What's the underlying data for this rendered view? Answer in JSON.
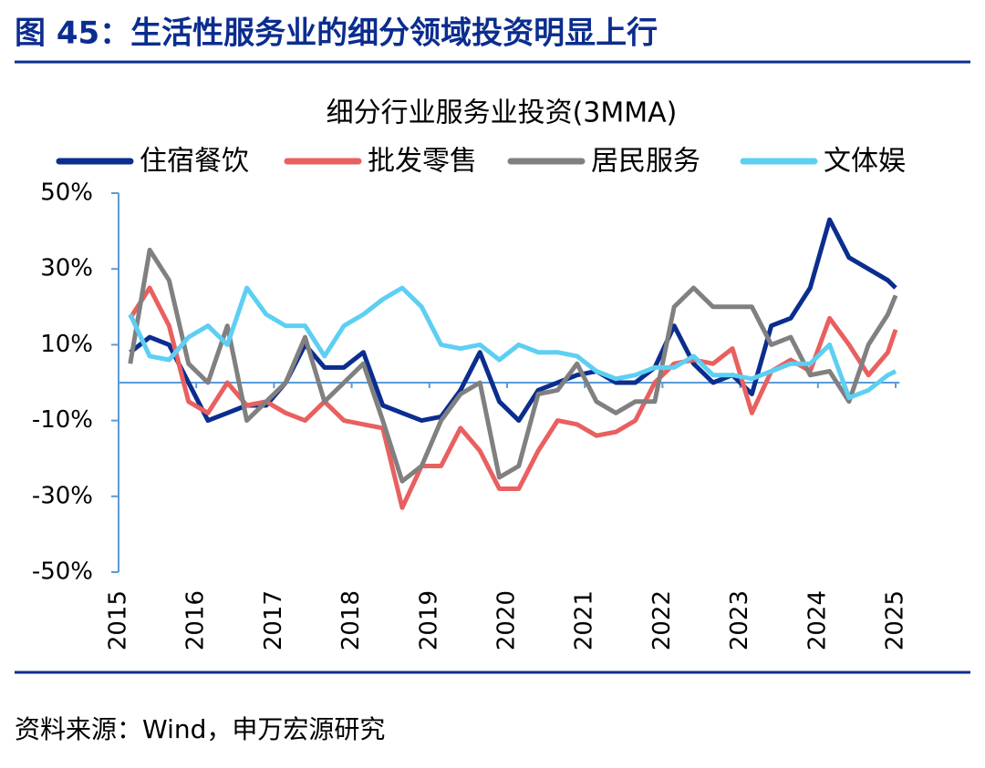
{
  "figure_title": "图 45：生活性服务业的细分领域投资明显上行",
  "source": "资料来源：Wind，申万宏源研究",
  "chart_data": {
    "type": "line",
    "title": "细分行业服务业投资(3MMA)",
    "x": [
      2015.15,
      2015.4,
      2015.65,
      2015.9,
      2016.15,
      2016.4,
      2016.65,
      2016.9,
      2017.15,
      2017.4,
      2017.65,
      2017.9,
      2018.15,
      2018.4,
      2018.65,
      2018.9,
      2019.15,
      2019.4,
      2019.65,
      2019.9,
      2020.15,
      2020.4,
      2020.65,
      2020.9,
      2021.15,
      2021.4,
      2021.65,
      2021.9,
      2022.15,
      2022.4,
      2022.65,
      2022.9,
      2023.15,
      2023.4,
      2023.65,
      2023.9,
      2024.15,
      2024.4,
      2024.65,
      2024.9,
      2025.0
    ],
    "series": [
      {
        "name": "住宿餐饮",
        "color": "#0b2d8f",
        "values": [
          8,
          12,
          10,
          0,
          -10,
          -8,
          -6,
          -6,
          0,
          10,
          4,
          4,
          8,
          -6,
          -8,
          -10,
          -9,
          -2,
          8,
          -5,
          -10,
          -2,
          0,
          2,
          3,
          0,
          0,
          4,
          15,
          5,
          0,
          2,
          -3,
          15,
          17,
          25,
          43,
          33,
          30,
          27,
          25
        ]
      },
      {
        "name": "批发零售",
        "color": "#e8605f",
        "values": [
          17,
          25,
          15,
          -5,
          -8,
          0,
          -6,
          -5,
          -8,
          -10,
          -5,
          -10,
          -11,
          -12,
          -33,
          -22,
          -22,
          -12,
          -18,
          -28,
          -28,
          -18,
          -10,
          -11,
          -14,
          -13,
          -10,
          0,
          5,
          6,
          5,
          9,
          -8,
          3,
          6,
          3,
          17,
          10,
          2,
          8,
          14
        ]
      },
      {
        "name": "居民服务",
        "color": "#808080",
        "values": [
          5,
          35,
          27,
          5,
          0,
          15,
          -10,
          -5,
          0,
          12,
          -5,
          0,
          5,
          -10,
          -26,
          -22,
          -10,
          -3,
          0,
          -25,
          -22,
          -3,
          -2,
          5,
          -5,
          -8,
          -5,
          -5,
          20,
          25,
          20,
          20,
          20,
          10,
          12,
          2,
          3,
          -5,
          10,
          18,
          23
        ]
      },
      {
        "name": "文体娱",
        "color": "#5dcff2",
        "values": [
          18,
          7,
          6,
          12,
          15,
          10,
          25,
          18,
          15,
          15,
          7,
          15,
          18,
          22,
          25,
          20,
          10,
          9,
          10,
          6,
          10,
          8,
          8,
          7,
          3,
          1,
          2,
          4,
          4,
          7,
          2,
          2,
          1,
          3,
          5,
          5,
          10,
          -4,
          -2,
          2,
          3
        ]
      }
    ],
    "xlim": [
      2015,
      2025.05
    ],
    "xticks": [
      2015,
      2016,
      2017,
      2018,
      2019,
      2020,
      2021,
      2022,
      2023,
      2024,
      2025
    ],
    "ylim": [
      -50,
      50
    ],
    "yticks": [
      {
        "value": -50,
        "label": "-50%"
      },
      {
        "value": -30,
        "label": "-30%"
      },
      {
        "value": -10,
        "label": "-10%"
      },
      {
        "value": 10,
        "label": "10%"
      },
      {
        "value": 30,
        "label": "30%"
      },
      {
        "value": 50,
        "label": "50%"
      }
    ]
  }
}
